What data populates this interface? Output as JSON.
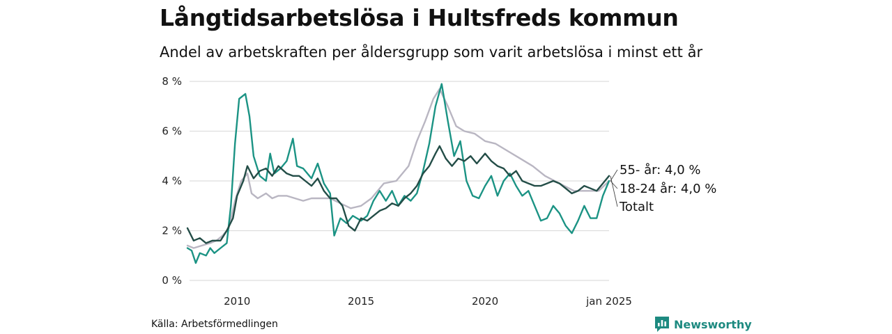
{
  "title": "Långtidsarbetslösa i Hultsfreds kommun",
  "subtitle": "Andel av arbetskraften per åldersgrupp som varit arbetslösa i minst ett år",
  "source": "Källa: Arbetsförmedlingen",
  "brand": "Newsworthy",
  "chart_data": {
    "type": "line",
    "x_ticks": [
      {
        "label": "2010",
        "x": "2010-01"
      },
      {
        "label": "2015",
        "x": "2015-01"
      },
      {
        "label": "2020",
        "x": "2020-01"
      },
      {
        "label": "jan 2025",
        "x": "2025-01"
      }
    ],
    "y_ticks": [
      "0 %",
      "2 %",
      "4 %",
      "6 %",
      "8 %"
    ],
    "ylim": [
      0,
      8
    ],
    "grid": true,
    "colors": {
      "55-": "#b9b6c2",
      "18-24": "#1b9384",
      "total": "#234d47"
    },
    "end_labels": {
      "55-": "55- år: 4,0 %",
      "18-24": "18-24 år: 4,0 %",
      "total": "Totalt"
    },
    "series": [
      {
        "key": "55-",
        "values": [
          [
            "2008-01",
            1.4
          ],
          [
            "2008-04",
            1.3
          ],
          [
            "2008-08",
            1.4
          ],
          [
            "2008-12",
            1.5
          ],
          [
            "2009-03",
            1.6
          ],
          [
            "2009-06",
            1.8
          ],
          [
            "2009-09",
            2.1
          ],
          [
            "2009-12",
            3.2
          ],
          [
            "2010-03",
            4.0
          ],
          [
            "2010-06",
            4.3
          ],
          [
            "2010-08",
            3.5
          ],
          [
            "2010-11",
            3.3
          ],
          [
            "2011-03",
            3.5
          ],
          [
            "2011-06",
            3.3
          ],
          [
            "2011-09",
            3.4
          ],
          [
            "2012-01",
            3.4
          ],
          [
            "2012-05",
            3.3
          ],
          [
            "2012-09",
            3.2
          ],
          [
            "2013-01",
            3.3
          ],
          [
            "2013-06",
            3.3
          ],
          [
            "2013-10",
            3.3
          ],
          [
            "2014-03",
            3.1
          ],
          [
            "2014-08",
            2.9
          ],
          [
            "2015-01",
            3.0
          ],
          [
            "2015-06",
            3.3
          ],
          [
            "2015-12",
            3.9
          ],
          [
            "2016-06",
            4.0
          ],
          [
            "2016-12",
            4.6
          ],
          [
            "2017-04",
            5.6
          ],
          [
            "2017-08",
            6.4
          ],
          [
            "2017-12",
            7.3
          ],
          [
            "2018-03",
            7.7
          ],
          [
            "2018-07",
            7.0
          ],
          [
            "2018-11",
            6.2
          ],
          [
            "2019-03",
            6.0
          ],
          [
            "2019-08",
            5.9
          ],
          [
            "2020-01",
            5.6
          ],
          [
            "2020-06",
            5.5
          ],
          [
            "2020-12",
            5.2
          ],
          [
            "2021-06",
            4.9
          ],
          [
            "2021-12",
            4.6
          ],
          [
            "2022-06",
            4.2
          ],
          [
            "2023-01",
            3.9
          ],
          [
            "2023-08",
            3.6
          ],
          [
            "2024-03",
            3.6
          ],
          [
            "2024-08",
            3.6
          ],
          [
            "2025-01",
            4.0
          ]
        ]
      },
      {
        "key": "18-24",
        "values": [
          [
            "2008-01",
            1.3
          ],
          [
            "2008-03",
            1.2
          ],
          [
            "2008-05",
            0.7
          ],
          [
            "2008-07",
            1.1
          ],
          [
            "2008-10",
            1.0
          ],
          [
            "2008-12",
            1.3
          ],
          [
            "2009-02",
            1.1
          ],
          [
            "2009-05",
            1.3
          ],
          [
            "2009-08",
            1.5
          ],
          [
            "2009-10",
            3.0
          ],
          [
            "2009-12",
            5.5
          ],
          [
            "2010-02",
            7.3
          ],
          [
            "2010-05",
            7.5
          ],
          [
            "2010-07",
            6.6
          ],
          [
            "2010-09",
            5.0
          ],
          [
            "2010-12",
            4.2
          ],
          [
            "2011-03",
            4.0
          ],
          [
            "2011-05",
            5.1
          ],
          [
            "2011-07",
            4.3
          ],
          [
            "2011-10",
            4.5
          ],
          [
            "2012-01",
            4.8
          ],
          [
            "2012-04",
            5.7
          ],
          [
            "2012-06",
            4.6
          ],
          [
            "2012-09",
            4.5
          ],
          [
            "2013-01",
            4.1
          ],
          [
            "2013-04",
            4.7
          ],
          [
            "2013-07",
            3.9
          ],
          [
            "2013-10",
            3.5
          ],
          [
            "2013-12",
            1.8
          ],
          [
            "2014-03",
            2.5
          ],
          [
            "2014-06",
            2.3
          ],
          [
            "2014-09",
            2.6
          ],
          [
            "2015-01",
            2.4
          ],
          [
            "2015-04",
            2.6
          ],
          [
            "2015-07",
            3.2
          ],
          [
            "2015-10",
            3.6
          ],
          [
            "2016-01",
            3.2
          ],
          [
            "2016-04",
            3.6
          ],
          [
            "2016-07",
            3.0
          ],
          [
            "2016-10",
            3.4
          ],
          [
            "2017-01",
            3.2
          ],
          [
            "2017-04",
            3.5
          ],
          [
            "2017-07",
            4.4
          ],
          [
            "2017-10",
            5.5
          ],
          [
            "2018-01",
            7.0
          ],
          [
            "2018-04",
            7.9
          ],
          [
            "2018-07",
            6.4
          ],
          [
            "2018-10",
            5.0
          ],
          [
            "2019-01",
            5.6
          ],
          [
            "2019-04",
            4.0
          ],
          [
            "2019-07",
            3.4
          ],
          [
            "2019-10",
            3.3
          ],
          [
            "2020-01",
            3.8
          ],
          [
            "2020-04",
            4.2
          ],
          [
            "2020-07",
            3.4
          ],
          [
            "2020-10",
            4.0
          ],
          [
            "2021-01",
            4.3
          ],
          [
            "2021-04",
            3.8
          ],
          [
            "2021-07",
            3.4
          ],
          [
            "2021-10",
            3.6
          ],
          [
            "2022-01",
            3.0
          ],
          [
            "2022-04",
            2.4
          ],
          [
            "2022-07",
            2.5
          ],
          [
            "2022-10",
            3.0
          ],
          [
            "2023-01",
            2.7
          ],
          [
            "2023-04",
            2.2
          ],
          [
            "2023-07",
            1.9
          ],
          [
            "2023-10",
            2.4
          ],
          [
            "2024-01",
            3.0
          ],
          [
            "2024-04",
            2.5
          ],
          [
            "2024-07",
            2.5
          ],
          [
            "2024-10",
            3.4
          ],
          [
            "2025-01",
            4.0
          ]
        ]
      },
      {
        "key": "total",
        "values": [
          [
            "2008-01",
            2.1
          ],
          [
            "2008-04",
            1.6
          ],
          [
            "2008-07",
            1.7
          ],
          [
            "2008-10",
            1.5
          ],
          [
            "2009-01",
            1.6
          ],
          [
            "2009-05",
            1.6
          ],
          [
            "2009-08",
            2.0
          ],
          [
            "2009-11",
            2.5
          ],
          [
            "2010-01",
            3.4
          ],
          [
            "2010-04",
            4.0
          ],
          [
            "2010-06",
            4.6
          ],
          [
            "2010-09",
            4.1
          ],
          [
            "2010-12",
            4.4
          ],
          [
            "2011-03",
            4.5
          ],
          [
            "2011-06",
            4.2
          ],
          [
            "2011-09",
            4.6
          ],
          [
            "2012-01",
            4.3
          ],
          [
            "2012-04",
            4.2
          ],
          [
            "2012-07",
            4.2
          ],
          [
            "2012-10",
            4.0
          ],
          [
            "2013-01",
            3.8
          ],
          [
            "2013-04",
            4.1
          ],
          [
            "2013-07",
            3.6
          ],
          [
            "2013-10",
            3.3
          ],
          [
            "2014-01",
            3.3
          ],
          [
            "2014-04",
            3.0
          ],
          [
            "2014-07",
            2.2
          ],
          [
            "2014-10",
            2.0
          ],
          [
            "2015-01",
            2.5
          ],
          [
            "2015-04",
            2.4
          ],
          [
            "2015-07",
            2.6
          ],
          [
            "2015-10",
            2.8
          ],
          [
            "2016-01",
            2.9
          ],
          [
            "2016-04",
            3.1
          ],
          [
            "2016-07",
            3.0
          ],
          [
            "2016-10",
            3.3
          ],
          [
            "2017-01",
            3.5
          ],
          [
            "2017-04",
            3.8
          ],
          [
            "2017-07",
            4.3
          ],
          [
            "2017-10",
            4.6
          ],
          [
            "2018-01",
            5.1
          ],
          [
            "2018-03",
            5.4
          ],
          [
            "2018-06",
            4.9
          ],
          [
            "2018-09",
            4.6
          ],
          [
            "2018-12",
            4.9
          ],
          [
            "2019-03",
            4.8
          ],
          [
            "2019-06",
            5.0
          ],
          [
            "2019-09",
            4.7
          ],
          [
            "2020-01",
            5.1
          ],
          [
            "2020-04",
            4.8
          ],
          [
            "2020-07",
            4.6
          ],
          [
            "2020-10",
            4.5
          ],
          [
            "2021-01",
            4.2
          ],
          [
            "2021-04",
            4.4
          ],
          [
            "2021-07",
            4.0
          ],
          [
            "2021-10",
            3.9
          ],
          [
            "2022-01",
            3.8
          ],
          [
            "2022-04",
            3.8
          ],
          [
            "2022-07",
            3.9
          ],
          [
            "2022-10",
            4.0
          ],
          [
            "2023-01",
            3.9
          ],
          [
            "2023-04",
            3.7
          ],
          [
            "2023-07",
            3.5
          ],
          [
            "2023-10",
            3.6
          ],
          [
            "2024-01",
            3.8
          ],
          [
            "2024-04",
            3.7
          ],
          [
            "2024-07",
            3.6
          ],
          [
            "2024-10",
            3.9
          ],
          [
            "2025-01",
            4.2
          ]
        ]
      }
    ]
  }
}
